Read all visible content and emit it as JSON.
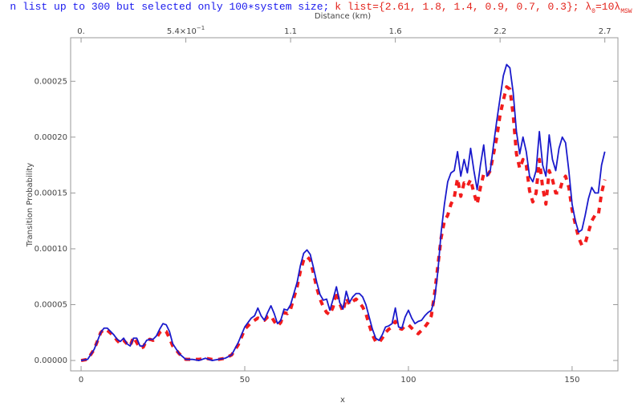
{
  "chart_data": {
    "type": "line",
    "title_parts": [
      {
        "text": "n list up to 300 but selected only 100∗system size;",
        "color": "#1a1aee"
      },
      {
        "text": "k list={2.61, 1.8, 1.4, 0.9, 0.7, 0.3}; λ",
        "color": "#e3241c"
      },
      {
        "text": "0",
        "color": "#e3241c",
        "sub": true
      },
      {
        "text": "=10λ",
        "color": "#e3241c"
      },
      {
        "text": "MSW",
        "color": "#e3241c",
        "sub": true
      }
    ],
    "x_label": "x",
    "y_label": "Transition Probability",
    "x2_label": "Distance (km)",
    "xlim": [
      -3.2,
      164.0
    ],
    "xticks": [
      0,
      50,
      100,
      150
    ],
    "x2lim": [
      -0.054,
      2.7675
    ],
    "x2ticks": [
      {
        "value": 0,
        "label": "0."
      },
      {
        "value": 0.54,
        "label": "5.4×10",
        "exponent": "−1"
      },
      {
        "value": 1.08,
        "label": "1.1"
      },
      {
        "value": 1.62,
        "label": "1.6"
      },
      {
        "value": 2.16,
        "label": "2.2"
      },
      {
        "value": 2.7,
        "label": "2.7"
      }
    ],
    "ylim": [
      -9.3e-06,
      0.000289
    ],
    "yticks": [
      {
        "value": 0,
        "label": "0.00000"
      },
      {
        "value": 5e-05,
        "label": "0.00005"
      },
      {
        "value": 0.0001,
        "label": "0.00010"
      },
      {
        "value": 0.00015,
        "label": "0.00015"
      },
      {
        "value": 0.0002,
        "label": "0.00020"
      },
      {
        "value": 0.00025,
        "label": "0.00025"
      }
    ],
    "grid": false,
    "x": [
      0,
      2,
      4,
      6,
      7,
      8,
      10,
      11,
      12,
      13,
      14,
      15,
      16,
      17,
      18,
      19,
      20,
      21,
      22,
      23,
      24,
      25,
      26,
      27,
      28,
      30,
      32,
      34,
      36,
      38,
      40,
      42,
      44,
      46,
      48,
      50,
      52,
      53,
      54,
      55,
      56,
      57,
      58,
      59,
      60,
      61,
      62,
      63,
      64,
      65,
      66,
      67,
      68,
      69,
      70,
      71,
      72,
      73,
      74,
      75,
      76,
      77,
      78,
      79,
      80,
      81,
      82,
      83,
      84,
      85,
      86,
      87,
      88,
      89,
      90,
      91,
      92,
      93,
      94,
      95,
      96,
      97,
      98,
      99,
      100,
      101,
      102,
      103,
      104,
      105,
      106,
      107,
      108,
      109,
      110,
      111,
      112,
      113,
      114,
      115,
      116,
      117,
      118,
      119,
      120,
      121,
      122,
      123,
      124,
      125,
      126,
      127,
      128,
      129,
      130,
      131,
      132,
      133,
      134,
      135,
      136,
      137,
      138,
      139,
      140,
      141,
      142,
      143,
      144,
      145,
      146,
      147,
      148,
      149,
      150,
      151,
      152,
      153,
      154,
      155,
      156,
      157,
      158,
      159,
      160
    ],
    "series": [
      {
        "color": "#1a1acc",
        "dash": false,
        "values": [
          0,
          1e-06,
          1e-05,
          2.5e-05,
          2.9e-05,
          2.9e-05,
          2.3e-05,
          1.9e-05,
          1.7e-05,
          2e-05,
          1.5e-05,
          1.3e-05,
          2e-05,
          2e-05,
          1.3e-05,
          1.3e-05,
          1.8e-05,
          1.9e-05,
          1.9e-05,
          2.2e-05,
          2.8e-05,
          3.3e-05,
          3.2e-05,
          2.6e-05,
          1.5e-05,
          6e-06,
          1e-06,
          1e-06,
          0,
          2e-06,
          0,
          1e-06,
          2e-06,
          5e-06,
          1.6e-05,
          3e-05,
          3.8e-05,
          4e-05,
          4.7e-05,
          4e-05,
          3.6e-05,
          4.3e-05,
          4.9e-05,
          4.2e-05,
          3.3e-05,
          3.6e-05,
          4.6e-05,
          4.5e-05,
          5e-05,
          6e-05,
          7e-05,
          8.5e-05,
          9.6e-05,
          9.9e-05,
          9.5e-05,
          8.3e-05,
          7e-05,
          5.9e-05,
          5.4e-05,
          5.5e-05,
          4.5e-05,
          5.5e-05,
          6.6e-05,
          5.2e-05,
          4.6e-05,
          6.2e-05,
          5.2e-05,
          5.7e-05,
          6e-05,
          6e-05,
          5.7e-05,
          5e-05,
          3.9e-05,
          2.8e-05,
          2e-05,
          1.8e-05,
          2.3e-05,
          3e-05,
          3.1e-05,
          3.3e-05,
          4.7e-05,
          3e-05,
          2.9e-05,
          3.9e-05,
          4.5e-05,
          3.8e-05,
          3.3e-05,
          3.5e-05,
          3.6e-05,
          4e-05,
          4.3e-05,
          4.5e-05,
          5.5e-05,
          8e-05,
          0.000115,
          0.00014,
          0.00016,
          0.000168,
          0.00017,
          0.000187,
          0.000165,
          0.00018,
          0.000168,
          0.00019,
          0.00017,
          0.000153,
          0.000175,
          0.000193,
          0.000165,
          0.00017,
          0.000193,
          0.000215,
          0.000235,
          0.000255,
          0.000265,
          0.000262,
          0.00024,
          0.000205,
          0.000185,
          0.0002,
          0.000187,
          0.000165,
          0.00016,
          0.00017,
          0.000205,
          0.000175,
          0.000165,
          0.000202,
          0.00018,
          0.00017,
          0.00019,
          0.0002,
          0.000195,
          0.00017,
          0.00014,
          0.000125,
          0.000115,
          0.000117,
          0.00013,
          0.000145,
          0.000155,
          0.00015,
          0.00015,
          0.000175,
          0.000187
        ]
      },
      {
        "color": "#f21c1c",
        "dash": true,
        "values": [
          0,
          1e-06,
          1e-05,
          2.5e-05,
          2.8e-05,
          2.7e-05,
          2.2e-05,
          1.8e-05,
          1.5e-05,
          1.8e-05,
          1.5e-05,
          1.3e-05,
          2.1e-05,
          1.6e-05,
          1.1e-05,
          1.2e-05,
          1.8e-05,
          1.9e-05,
          1.8e-05,
          2e-05,
          2.5e-05,
          2.7e-05,
          2.6e-05,
          2e-05,
          1.3e-05,
          6e-06,
          1e-06,
          1e-06,
          1e-06,
          2e-06,
          1e-06,
          1e-06,
          2e-06,
          5e-06,
          1.4e-05,
          2.8e-05,
          3.4e-05,
          3.6e-05,
          3.8e-05,
          3.7e-05,
          3.6e-05,
          3.9e-05,
          4e-05,
          3.5e-05,
          3.1e-05,
          3.4e-05,
          4.3e-05,
          4.2e-05,
          4.6e-05,
          5.6e-05,
          6.6e-05,
          8e-05,
          9e-05,
          9.3e-05,
          9e-05,
          7.8e-05,
          6.5e-05,
          5.5e-05,
          4.8e-05,
          4.3e-05,
          4.1e-05,
          4.8e-05,
          6.2e-05,
          5.1e-05,
          4.4e-05,
          5.6e-05,
          5e-05,
          5.3e-05,
          5.5e-05,
          5.2e-05,
          4.8e-05,
          4.2e-05,
          3.2e-05,
          2.3e-05,
          1.7e-05,
          1.6e-05,
          2e-05,
          2.5e-05,
          2.8e-05,
          3e-05,
          3.5e-05,
          2.9e-05,
          2.8e-05,
          3.1e-05,
          3.2e-05,
          2.9e-05,
          2.6e-05,
          2.4e-05,
          2.7e-05,
          3e-05,
          3.4e-05,
          4e-05,
          6e-05,
          8.5e-05,
          0.00011,
          0.000125,
          0.00013,
          0.00014,
          0.000146,
          0.000163,
          0.000147,
          0.000159,
          0.000156,
          0.000162,
          0.00015,
          0.00014,
          0.000155,
          0.000167,
          0.000165,
          0.00017,
          0.000185,
          0.0002,
          0.00022,
          0.000233,
          0.000245,
          0.000243,
          0.00022,
          0.000185,
          0.000172,
          0.00018,
          0.000175,
          0.000152,
          0.000142,
          0.00015,
          0.00018,
          0.000155,
          0.00014,
          0.00017,
          0.000162,
          0.00015,
          0.00015,
          0.00016,
          0.000165,
          0.000155,
          0.000135,
          0.000122,
          0.00011,
          0.000103,
          0.000105,
          0.000115,
          0.000125,
          0.00013,
          0.00013,
          0.00015,
          0.000162
        ]
      }
    ]
  }
}
